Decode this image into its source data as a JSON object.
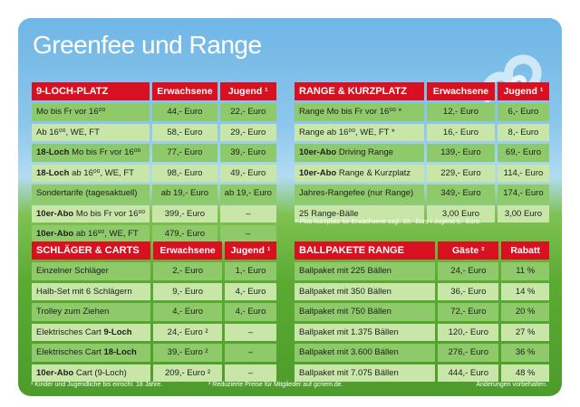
{
  "title": "Greenfee und Range",
  "loch": {
    "headers": [
      "9-LOCH-PLATZ",
      "Erwachsene",
      "Jugend ¹"
    ],
    "rows": [
      {
        "bold": "",
        "rest": "Mo bis Fr vor 16⁰⁰",
        "a": "44,- Euro",
        "b": "22,- Euro"
      },
      {
        "bold": "",
        "rest": "Ab 16⁰⁰, WE, FT",
        "a": "58,- Euro",
        "b": "29,- Euro"
      },
      {
        "bold": "18-Loch",
        "rest": " Mo bis Fr vor 16⁰⁰",
        "a": "77,- Euro",
        "b": "39,- Euro"
      },
      {
        "bold": "18-Loch",
        "rest": " ab 16⁰⁰, WE, FT",
        "a": "98,- Euro",
        "b": "49,- Euro"
      },
      {
        "bold": "",
        "rest": "Sondertarife (tagesaktuell)",
        "a": "ab 19,- Euro",
        "b": "ab 19,- Euro"
      },
      {
        "bold": "10er-Abo",
        "rest": " Mo bis Fr vor 16⁰⁰",
        "a": "399,- Euro",
        "b": "–"
      },
      {
        "bold": "10er-Abo",
        "rest": " ab 16⁰⁰, WE, FT",
        "a": "479,- Euro",
        "b": "–"
      }
    ]
  },
  "range": {
    "headers": [
      "RANGE & KURZPLATZ",
      "Erwachsene",
      "Jugend ¹"
    ],
    "rows": [
      {
        "bold": "",
        "rest": "Range Mo bis Fr vor 16⁰⁰ *",
        "a": "12,- Euro",
        "b": "6,- Euro"
      },
      {
        "bold": "",
        "rest": "Range ab 16⁰⁰, WE, FT *",
        "a": "16,- Euro",
        "b": "8,- Euro"
      },
      {
        "bold": "10er-Abo",
        "rest": " Driving Range",
        "a": "139,- Euro",
        "b": "69,- Euro"
      },
      {
        "bold": "10er-Abo",
        "rest": " Range & Kurzplatz",
        "a": "229,- Euro",
        "b": "114,- Euro"
      },
      {
        "bold": "",
        "rest": "Jahres-Rangefee (nur Range)",
        "a": "349,- Euro",
        "b": "174,- Euro"
      },
      {
        "bold": "",
        "rest": "25 Range-Bälle",
        "a": "3,00 Euro",
        "b": "3,00 Euro"
      }
    ],
    "note": "* Plus Kurzplatz für Erwachsene zzgl. 10,- Euro I Jugend 5,- Euro."
  },
  "carts": {
    "headers": [
      "SCHLÄGER & CARTS",
      "Erwachsene",
      "Jugend ¹"
    ],
    "rows": [
      {
        "pre": "Einzelner Schläger",
        "bold": "",
        "post": "",
        "a": "2,- Euro",
        "b": "1,- Euro"
      },
      {
        "pre": "Halb-Set mit 6 Schlägern",
        "bold": "",
        "post": "",
        "a": "9,- Euro",
        "b": "4,- Euro"
      },
      {
        "pre": "Trolley zum Ziehen",
        "bold": "",
        "post": "",
        "a": "4,- Euro",
        "b": "4,- Euro"
      },
      {
        "pre": "Elektrisches Cart ",
        "bold": "9-Loch",
        "post": "",
        "a": "24,- Euro ²",
        "b": "–"
      },
      {
        "pre": "Elektrisches Cart ",
        "bold": "18-Loch",
        "post": "",
        "a": "39,- Euro ²",
        "b": "–"
      },
      {
        "pre": "",
        "bold": "10er-Abo",
        "post": " Cart (9-Loch)",
        "a": "209,- Euro ²",
        "b": "–"
      }
    ]
  },
  "balls": {
    "headers": [
      "BALLPAKETE RANGE",
      "Gäste ²",
      "Rabatt"
    ],
    "rows": [
      {
        "name": "Ballpaket mit 225 Bällen",
        "a": "24,- Euro",
        "b": "11 %"
      },
      {
        "name": "Ballpaket mit 350 Bällen",
        "a": "36,- Euro",
        "b": "14 %"
      },
      {
        "name": "Ballpaket mit 750 Bällen",
        "a": "72,- Euro",
        "b": "20 %"
      },
      {
        "name": "Ballpaket mit 1.375 Bällen",
        "a": "120,- Euro",
        "b": "27 %"
      },
      {
        "name": "Ballpaket mit 3.600 Bällen",
        "a": "276,- Euro",
        "b": "36 %"
      },
      {
        "name": "Ballpaket mit 7.075 Bällen",
        "a": "444,- Euro",
        "b": "48 %"
      }
    ]
  },
  "footer": {
    "note1": "¹ Kinder und Jugendliche bis einschl. 18 Jahre.",
    "note2": "² Reduzierte Preise für Mitglieder auf gcriem.de.",
    "note3": "Änderungen vorbehalten."
  },
  "colors": {
    "header_red": "#d9101f",
    "row_dark": "#8fca6a",
    "row_light": "#c8e6a8",
    "sky": "#6fb6e6",
    "grass": "#5aaa32"
  }
}
